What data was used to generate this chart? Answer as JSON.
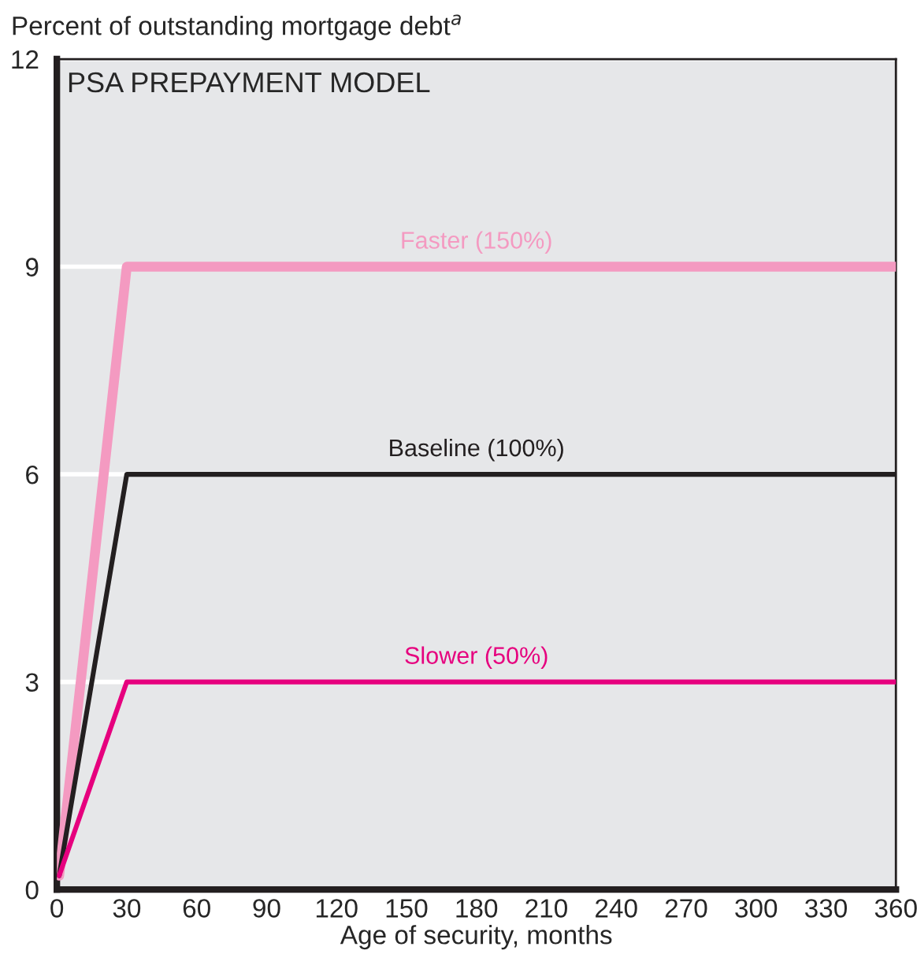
{
  "chart_data": {
    "type": "line",
    "title": "PSA PREPAYMENT MODEL",
    "ylabel": "Percent of outstanding mortgage debt$^{a}$",
    "xlabel": "Age of security, months",
    "series": [
      {
        "name": "Faster (150%)",
        "color": "#f49ac1",
        "x": [
          1,
          30,
          360
        ],
        "values": [
          0.2,
          9,
          9
        ]
      },
      {
        "name": "Baseline (100%)",
        "color": "#231f20",
        "x": [
          1,
          30,
          360
        ],
        "values": [
          0.2,
          6,
          6
        ]
      },
      {
        "name": "Slower (50%)",
        "color": "#e6007e",
        "x": [
          1,
          30,
          360
        ],
        "values": [
          0.2,
          3,
          3
        ]
      }
    ],
    "xlim": [
      0,
      360
    ],
    "xticks": [
      0,
      30,
      60,
      90,
      120,
      150,
      180,
      210,
      240,
      270,
      300,
      330,
      360
    ],
    "ylim": [
      0,
      12
    ],
    "yticks": [
      0,
      3,
      6,
      9,
      12
    ],
    "grid": "y",
    "legend": false,
    "marker": "none",
    "line_style": "solid"
  }
}
